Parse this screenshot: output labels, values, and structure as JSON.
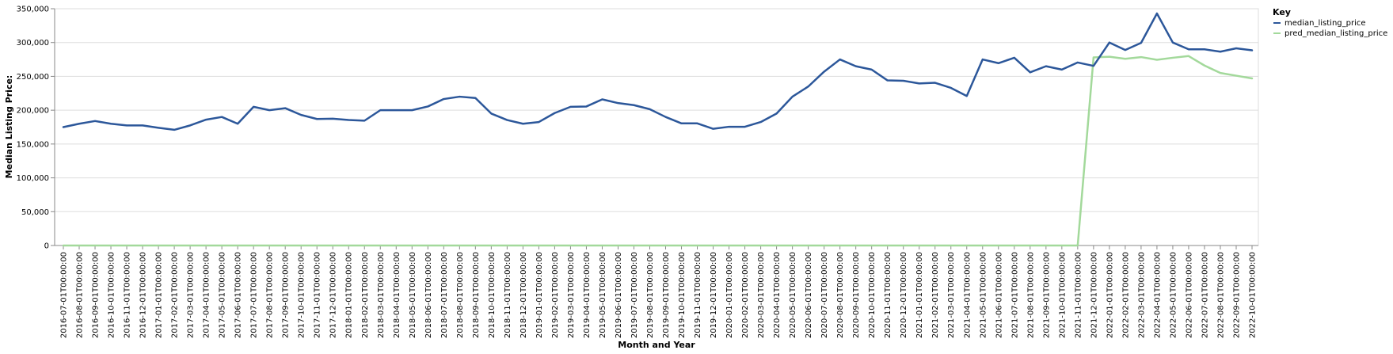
{
  "chart_data": {
    "type": "line",
    "xlabel": "Month and Year",
    "ylabel": "Median Listing Price:",
    "ylim": [
      0,
      350000
    ],
    "yticks": [
      0,
      50000,
      100000,
      150000,
      200000,
      250000,
      300000,
      350000
    ],
    "ytick_labels": [
      "0",
      "50,000",
      "100,000",
      "150,000",
      "200,000",
      "250,000",
      "300,000",
      "350,000"
    ],
    "grid": true,
    "legend": {
      "title": "Key",
      "placement": "top-right"
    },
    "x": [
      "2016-07-01T00:00:00",
      "2016-08-01T00:00:00",
      "2016-09-01T00:00:00",
      "2016-10-01T00:00:00",
      "2016-11-01T00:00:00",
      "2016-12-01T00:00:00",
      "2017-01-01T00:00:00",
      "2017-02-01T00:00:00",
      "2017-03-01T00:00:00",
      "2017-04-01T00:00:00",
      "2017-05-01T00:00:00",
      "2017-06-01T00:00:00",
      "2017-07-01T00:00:00",
      "2017-08-01T00:00:00",
      "2017-09-01T00:00:00",
      "2017-10-01T00:00:00",
      "2017-11-01T00:00:00",
      "2017-12-01T00:00:00",
      "2018-01-01T00:00:00",
      "2018-02-01T00:00:00",
      "2018-03-01T00:00:00",
      "2018-04-01T00:00:00",
      "2018-05-01T00:00:00",
      "2018-06-01T00:00:00",
      "2018-07-01T00:00:00",
      "2018-08-01T00:00:00",
      "2018-09-01T00:00:00",
      "2018-10-01T00:00:00",
      "2018-11-01T00:00:00",
      "2018-12-01T00:00:00",
      "2019-01-01T00:00:00",
      "2019-02-01T00:00:00",
      "2019-03-01T00:00:00",
      "2019-04-01T00:00:00",
      "2019-05-01T00:00:00",
      "2019-06-01T00:00:00",
      "2019-07-01T00:00:00",
      "2019-08-01T00:00:00",
      "2019-09-01T00:00:00",
      "2019-10-01T00:00:00",
      "2019-11-01T00:00:00",
      "2019-12-01T00:00:00",
      "2020-01-01T00:00:00",
      "2020-02-01T00:00:00",
      "2020-03-01T00:00:00",
      "2020-04-01T00:00:00",
      "2020-05-01T00:00:00",
      "2020-06-01T00:00:00",
      "2020-07-01T00:00:00",
      "2020-08-01T00:00:00",
      "2020-09-01T00:00:00",
      "2020-10-01T00:00:00",
      "2020-11-01T00:00:00",
      "2020-12-01T00:00:00",
      "2021-01-01T00:00:00",
      "2021-02-01T00:00:00",
      "2021-03-01T00:00:00",
      "2021-04-01T00:00:00",
      "2021-05-01T00:00:00",
      "2021-06-01T00:00:00",
      "2021-07-01T00:00:00",
      "2021-08-01T00:00:00",
      "2021-09-01T00:00:00",
      "2021-10-01T00:00:00",
      "2021-11-01T00:00:00",
      "2021-12-01T00:00:00",
      "2022-01-01T00:00:00",
      "2022-02-01T00:00:00",
      "2022-03-01T00:00:00",
      "2022-04-01T00:00:00",
      "2022-05-01T00:00:00",
      "2022-06-01T00:00:00",
      "2022-07-01T00:00:00",
      "2022-08-01T00:00:00",
      "2022-09-01T00:00:00",
      "2022-10-01T00:00:00"
    ],
    "series": [
      {
        "name": "median_listing_price",
        "color": "#2c579a",
        "values": [
          175000,
          180000,
          184000,
          180000,
          177500,
          177500,
          174000,
          171000,
          177500,
          186000,
          190000,
          180000,
          205000,
          200000,
          203000,
          193000,
          187000,
          187500,
          185500,
          184500,
          200000,
          200000,
          200000,
          205500,
          216500,
          220000,
          218000,
          195000,
          185500,
          180000,
          182500,
          195800,
          205000,
          205500,
          216000,
          210500,
          207500,
          201500,
          190000,
          180500,
          180500,
          172500,
          175500,
          175500,
          182500,
          195000,
          220000,
          235000,
          257000,
          275000,
          265000,
          260000,
          244000,
          243500,
          239500,
          240500,
          233000,
          221000,
          275000,
          269500,
          277500,
          256000,
          265000,
          260000,
          270500,
          265500,
          300000,
          289000,
          299500,
          343000,
          300000,
          290000,
          290000,
          286500,
          291500,
          288500
        ]
      },
      {
        "name": "pred_median_listing_price",
        "color": "#a3d99b",
        "values": [
          0,
          0,
          0,
          0,
          0,
          0,
          0,
          0,
          0,
          0,
          0,
          0,
          0,
          0,
          0,
          0,
          0,
          0,
          0,
          0,
          0,
          0,
          0,
          0,
          0,
          0,
          0,
          0,
          0,
          0,
          0,
          0,
          0,
          0,
          0,
          0,
          0,
          0,
          0,
          0,
          0,
          0,
          0,
          0,
          0,
          0,
          0,
          0,
          0,
          0,
          0,
          0,
          0,
          0,
          0,
          0,
          0,
          0,
          0,
          0,
          0,
          0,
          0,
          0,
          0,
          278000,
          279000,
          276000,
          278500,
          274500,
          277500,
          280000,
          266000,
          255000,
          251000,
          247000
        ]
      }
    ]
  }
}
